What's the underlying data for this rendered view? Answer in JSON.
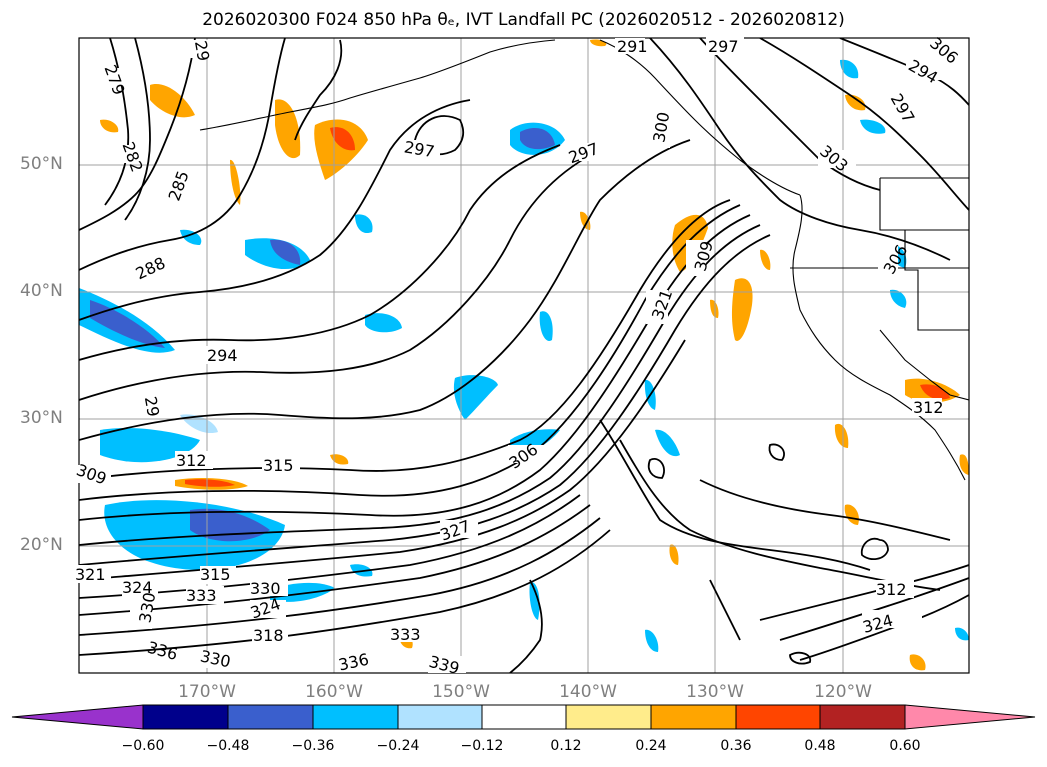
{
  "title": "2026020300 F024 850 hPa θₑ, IVT Landfall PC (2026020512 - 2026020812)",
  "map": {
    "lat_labels": [
      "50°N",
      "40°N",
      "30°N",
      "20°N"
    ],
    "lon_labels": [
      "170°W",
      "160°W",
      "150°W",
      "140°W",
      "130°W",
      "120°W"
    ],
    "contour_labels": [
      "279",
      "282",
      "285",
      "288",
      "294",
      "29",
      "297",
      "297",
      "297",
      "300",
      "303",
      "306",
      "309",
      "309",
      "312",
      "312",
      "315",
      "315",
      "318",
      "321",
      "324",
      "324",
      "327",
      "330",
      "330",
      "333",
      "333",
      "336",
      "336",
      "339",
      "291",
      "294",
      "297",
      "306",
      "321",
      "330",
      "312",
      "324"
    ],
    "colors": {
      "land_lines": "#000000",
      "grid": "#a0a0a0"
    }
  },
  "colorbar": {
    "ticks": [
      "−0.60",
      "−0.48",
      "−0.36",
      "−0.24",
      "−0.12",
      "0.12",
      "0.24",
      "0.36",
      "0.48",
      "0.60"
    ],
    "colors": [
      "#9932cc",
      "#00008b",
      "#3a5fcd",
      "#00bfff",
      "#b0e2ff",
      "#ffffff",
      "#ffec8b",
      "#ffa500",
      "#ff4500",
      "#b22222",
      "#ff88aa"
    ]
  }
}
